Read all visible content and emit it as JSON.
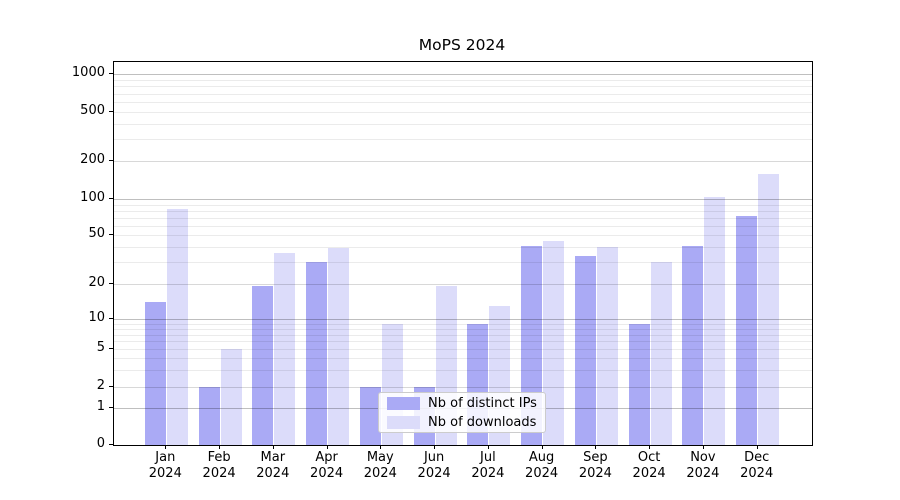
{
  "title": "MoPS 2024",
  "chart_data": {
    "type": "bar",
    "title": "MoPS 2024",
    "categories": [
      "Jan",
      "Feb",
      "Mar",
      "Apr",
      "May",
      "Jun",
      "Jul",
      "Aug",
      "Sep",
      "Oct",
      "Nov",
      "Dec"
    ],
    "category_year": "2024",
    "series": [
      {
        "name": "Nb of distinct IPs",
        "key": "distinct-ips",
        "color": "#aaaaf5",
        "values": [
          14,
          2,
          19,
          30,
          2,
          2,
          9,
          41,
          34,
          9,
          41,
          72
        ]
      },
      {
        "name": "Nb of downloads",
        "key": "downloads",
        "color": "#dcdcfa",
        "values": [
          83,
          5,
          36,
          39,
          9,
          19,
          13,
          45,
          40,
          30,
          103,
          158
        ]
      }
    ],
    "yticks": [
      0,
      1,
      2,
      5,
      10,
      20,
      50,
      100,
      200,
      500,
      1000
    ],
    "ylim": [
      0,
      1000
    ],
    "yscale": "symlog",
    "grid": {
      "major": true,
      "minor": true,
      "orientation": "horizontal"
    },
    "legend_position": "lower center",
    "scale_anchors": [
      [
        0,
        0
      ],
      [
        1,
        0.0966
      ],
      [
        2,
        0.1514
      ],
      [
        5,
        0.2507
      ],
      [
        10,
        0.3282
      ],
      [
        20,
        0.4212
      ],
      [
        50,
        0.5483
      ],
      [
        100,
        0.6423
      ],
      [
        200,
        0.7415
      ],
      [
        500,
        0.8702
      ],
      [
        1000,
        0.9678
      ]
    ],
    "minor_grid_values": [
      2,
      3,
      4,
      6,
      7,
      8,
      9,
      20,
      30,
      40,
      60,
      70,
      80,
      90,
      200,
      300,
      400,
      600,
      700,
      800,
      900
    ],
    "labeled_minor_grid_values": [
      2,
      5,
      20,
      50,
      200,
      500
    ]
  },
  "legend": {
    "items": [
      {
        "label": "Nb of distinct IPs",
        "color": "#aaaaf5"
      },
      {
        "label": "Nb of downloads",
        "color": "#dcdcfa"
      }
    ]
  }
}
